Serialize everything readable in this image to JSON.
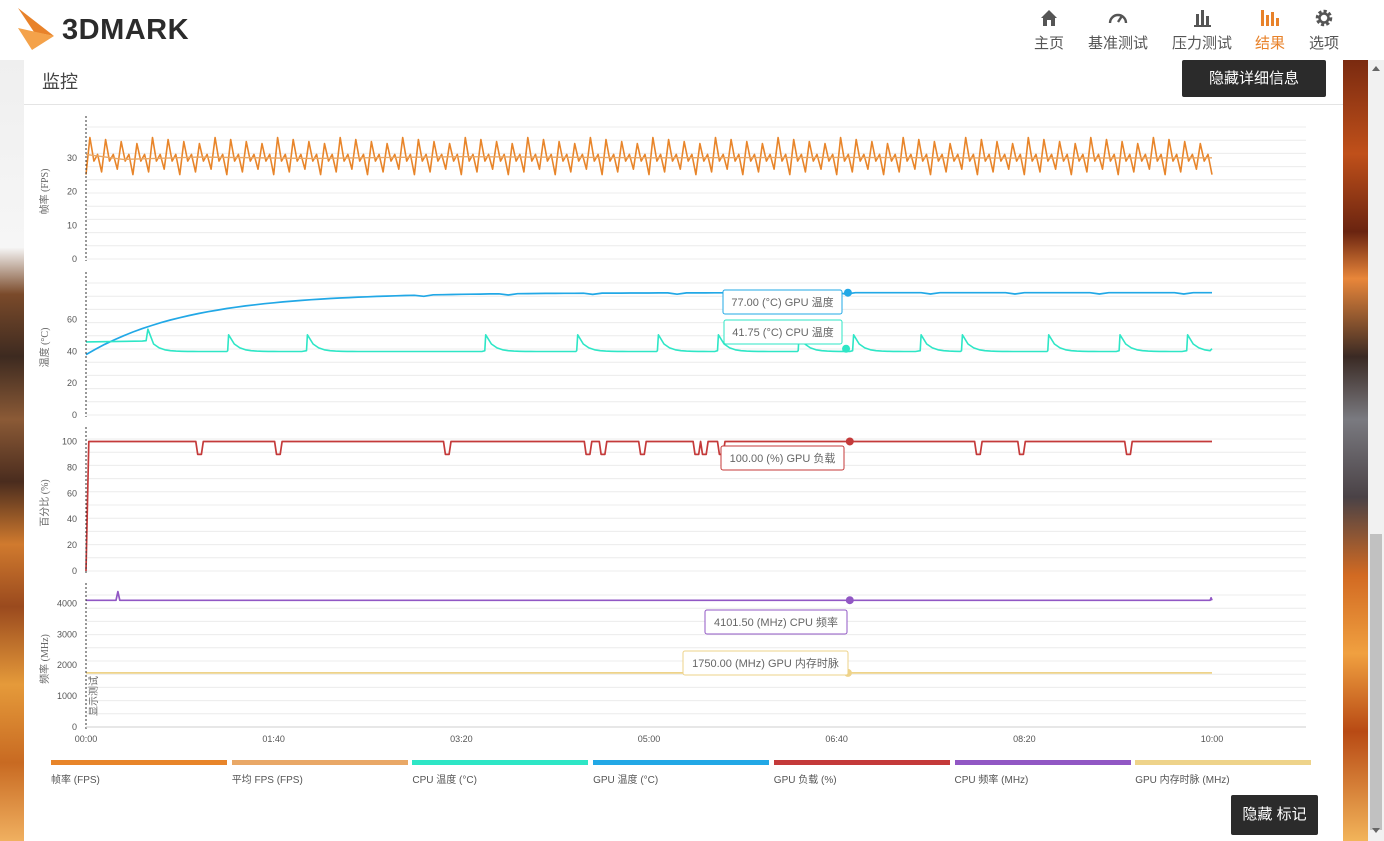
{
  "app": {
    "brand": "3DMARK"
  },
  "nav": [
    {
      "label": "主页",
      "icon": "home-icon"
    },
    {
      "label": "基准测试",
      "icon": "gauge-icon"
    },
    {
      "label": "压力测试",
      "icon": "bar-chart-icon"
    },
    {
      "label": "结果",
      "icon": "results-icon",
      "active": true
    },
    {
      "label": "选项",
      "icon": "gear-icon"
    }
  ],
  "colors": {
    "accent": "#e8822a",
    "fps": "#e8852a",
    "avg_fps": "#e9a867",
    "cpu_temp": "#2ee6c6",
    "gpu_temp": "#22a8e6",
    "gpu_load": "#c43a3a",
    "cpu_clock": "#9157c4",
    "gpu_mem_clock": "#eed38a"
  },
  "panel": {
    "title": "监控",
    "hide_details_label": "隐藏详细信息",
    "hide_markers_label": "隐藏 标记"
  },
  "chart_data": {
    "type": "line",
    "x_ticks": [
      "00:00",
      "01:40",
      "03:20",
      "05:00",
      "06:40",
      "08:20",
      "10:00"
    ],
    "x_range_seconds": [
      0,
      600
    ],
    "marker_label": "显示测试",
    "panels": [
      {
        "ylabel": "帧率 (FPS)",
        "ylim": [
          0,
          40
        ],
        "yticks": [
          "0",
          "10",
          "20",
          "30"
        ],
        "series": [
          "fps",
          "avg_fps"
        ]
      },
      {
        "ylabel": "温度 (°C)",
        "ylim": [
          0,
          85
        ],
        "yticks": [
          "0",
          "20",
          "40",
          "60"
        ],
        "series": [
          "gpu_temp",
          "cpu_temp"
        ]
      },
      {
        "ylabel": "百分比 (%)",
        "ylim": [
          0,
          105
        ],
        "yticks": [
          "0",
          "20",
          "40",
          "60",
          "80",
          "100"
        ],
        "series": [
          "gpu_load"
        ]
      },
      {
        "ylabel": "频率 (MHz)",
        "ylim": [
          0,
          4400
        ],
        "yticks": [
          "0",
          "1000",
          "2000",
          "3000",
          "4000"
        ],
        "series": [
          "cpu_clock",
          "gpu_mem_clock"
        ]
      }
    ],
    "series": [
      {
        "key": "fps",
        "name": "帧率 (FPS)",
        "approx_range": [
          23,
          38
        ]
      },
      {
        "key": "avg_fps",
        "name": "平均 FPS (FPS)",
        "approx_value": 30
      },
      {
        "key": "cpu_temp",
        "name": "CPU 温度 (°C)",
        "approx_baseline": 40,
        "spikes_to": 52
      },
      {
        "key": "gpu_temp",
        "name": "GPU 温度 (°C)",
        "start": 38,
        "plateau": 77
      },
      {
        "key": "gpu_load",
        "name": "GPU 负载 (%)",
        "value": 100,
        "dips_to": 88
      },
      {
        "key": "cpu_clock",
        "name": "CPU 频率 (MHz)",
        "value": 4100
      },
      {
        "key": "gpu_mem_clock",
        "name": "GPU 内存时脉 (MHz)",
        "value": 1750
      }
    ],
    "tooltips": [
      {
        "series": "gpu_temp",
        "text": "77.00 (°C) GPU 温度"
      },
      {
        "series": "cpu_temp",
        "text": "41.75 (°C) CPU 温度"
      },
      {
        "series": "gpu_load",
        "text": "100.00 (%) GPU 负载"
      },
      {
        "series": "cpu_clock",
        "text": "4101.50 (MHz) CPU 频率"
      },
      {
        "series": "gpu_mem_clock",
        "text": "1750.00 (MHz) GPU 内存时脉"
      }
    ]
  }
}
